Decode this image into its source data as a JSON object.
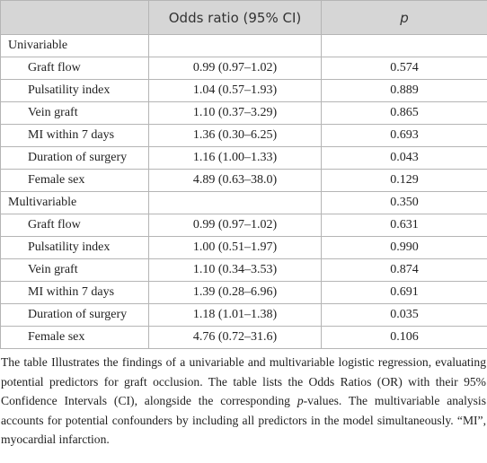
{
  "table": {
    "header": {
      "estimate": "Odds ratio (95% CI)",
      "p": "p"
    },
    "rows": [
      {
        "label": "Univariable"
      },
      {
        "label": "Graft flow",
        "or": "0.99 (0.97–1.02)",
        "p": "0.574"
      },
      {
        "label": "Pulsatility index",
        "or": "1.04 (0.57–1.93)",
        "p": "0.889"
      },
      {
        "label": "Vein graft",
        "or": "1.10 (0.37–3.29)",
        "p": "0.865"
      },
      {
        "label": "MI within 7 days",
        "or": "1.36 (0.30–6.25)",
        "p": "0.693"
      },
      {
        "label": "Duration of surgery",
        "or": "1.16 (1.00–1.33)",
        "p": "0.043"
      },
      {
        "label": "Female sex",
        "or": "4.89 (0.63–38.0)",
        "p": "0.129"
      },
      {
        "label": "Multivariable",
        "p": "0.350"
      },
      {
        "label": "Graft flow",
        "or": "0.99 (0.97–1.02)",
        "p": "0.631"
      },
      {
        "label": "Pulsatility index",
        "or": "1.00 (0.51–1.97)",
        "p": "0.990"
      },
      {
        "label": "Vein graft",
        "or": "1.10 (0.34–3.53)",
        "p": "0.874"
      },
      {
        "label": "MI within 7 days",
        "or": "1.39 (0.28–6.96)",
        "p": "0.691"
      },
      {
        "label": "Duration of surgery",
        "or": "1.18 (1.01–1.38)",
        "p": "0.035"
      },
      {
        "label": "Female sex",
        "or": "4.76 (0.72–31.6)",
        "p": "0.106"
      }
    ]
  },
  "caption": {
    "before": "The table Illustrates the findings of a univariable and multivariable logistic regression, evaluating potential predictors for graft occlusion. The table lists the Odds Ratios (OR) with their 95% Confidence Intervals (CI), alongside the corresponding ",
    "italic": "p",
    "after": "-values. The multivariable analysis accounts for potential confounders by including all predictors in the model simultaneously. “MI”, myocardial infarction."
  }
}
